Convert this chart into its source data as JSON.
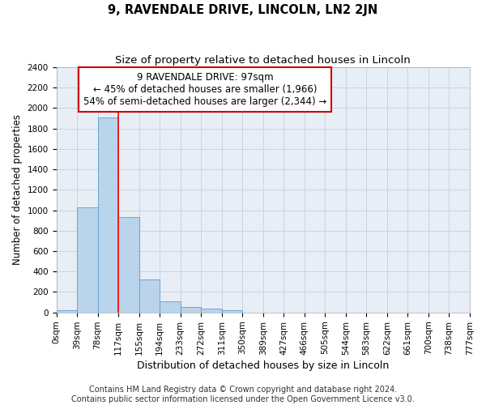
{
  "title": "9, RAVENDALE DRIVE, LINCOLN, LN2 2JN",
  "subtitle": "Size of property relative to detached houses in Lincoln",
  "xlabel": "Distribution of detached houses by size in Lincoln",
  "ylabel": "Number of detached properties",
  "bin_labels": [
    "0sqm",
    "39sqm",
    "78sqm",
    "117sqm",
    "155sqm",
    "194sqm",
    "233sqm",
    "272sqm",
    "311sqm",
    "350sqm",
    "389sqm",
    "427sqm",
    "466sqm",
    "505sqm",
    "544sqm",
    "583sqm",
    "622sqm",
    "661sqm",
    "700sqm",
    "738sqm",
    "777sqm"
  ],
  "bar_values": [
    20,
    1030,
    1910,
    930,
    325,
    110,
    55,
    35,
    20,
    0,
    0,
    0,
    0,
    0,
    0,
    0,
    0,
    0,
    0,
    0
  ],
  "bar_color": "#bad4eb",
  "bar_edgecolor": "#5b9bd5",
  "grid_color": "#c8d4e4",
  "background_color": "#e8eef6",
  "ylim": [
    0,
    2400
  ],
  "yticks": [
    0,
    200,
    400,
    600,
    800,
    1000,
    1200,
    1400,
    1600,
    1800,
    2000,
    2200,
    2400
  ],
  "red_line_x": 3.0,
  "annotation_text": "9 RAVENDALE DRIVE: 97sqm\n← 45% of detached houses are smaller (1,966)\n54% of semi-detached houses are larger (2,344) →",
  "annotation_box_color": "#ffffff",
  "annotation_box_edgecolor": "#cc0000",
  "footer": "Contains HM Land Registry data © Crown copyright and database right 2024.\nContains public sector information licensed under the Open Government Licence v3.0.",
  "title_fontsize": 10.5,
  "subtitle_fontsize": 9.5,
  "xlabel_fontsize": 9,
  "ylabel_fontsize": 8.5,
  "tick_fontsize": 7.5,
  "annotation_fontsize": 8.5,
  "footer_fontsize": 7
}
